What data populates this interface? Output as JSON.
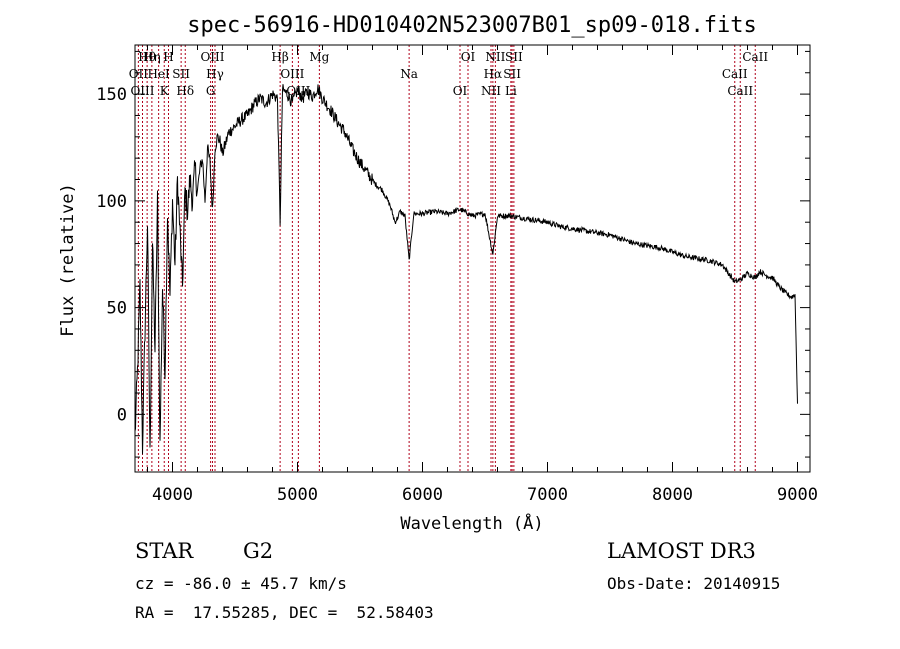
{
  "chart_data": {
    "type": "line",
    "title": "spec-56916-HD010402N523007B01_sp09-018.fits",
    "xlabel": "Wavelength (Å)",
    "ylabel": "Flux (relative)",
    "xlim": [
      3700,
      9100
    ],
    "ylim": [
      -27,
      173
    ],
    "x_ticks": [
      4000,
      5000,
      6000,
      7000,
      8000,
      9000
    ],
    "x_tick_labels": [
      "4000",
      "5000",
      "6000",
      "7000",
      "8000",
      "9000"
    ],
    "y_ticks": [
      0,
      50,
      100,
      150
    ],
    "y_tick_labels": [
      "0",
      "50",
      "100",
      "150"
    ],
    "grid": false,
    "series": [
      {
        "name": "flux",
        "color": "#000000",
        "x": [
          3700,
          3720,
          3740,
          3760,
          3780,
          3800,
          3820,
          3840,
          3860,
          3880,
          3900,
          3920,
          3940,
          3960,
          3980,
          4000,
          4020,
          4040,
          4060,
          4080,
          4100,
          4120,
          4140,
          4160,
          4180,
          4200,
          4220,
          4240,
          4260,
          4280,
          4300,
          4320,
          4340,
          4360,
          4380,
          4400,
          4450,
          4500,
          4550,
          4600,
          4650,
          4700,
          4750,
          4800,
          4840,
          4861,
          4880,
          4920,
          4960,
          5000,
          5040,
          5080,
          5120,
          5160,
          5200,
          5260,
          5320,
          5380,
          5440,
          5500,
          5560,
          5620,
          5680,
          5740,
          5780,
          5800,
          5820,
          5860,
          5893,
          5930,
          6000,
          6100,
          6200,
          6300,
          6400,
          6500,
          6563,
          6600,
          6700,
          6800,
          6900,
          7000,
          7100,
          7200,
          7300,
          7400,
          7500,
          7600,
          7700,
          7800,
          7900,
          8000,
          8100,
          8200,
          8300,
          8400,
          8498,
          8542,
          8600,
          8662,
          8700,
          8750,
          8800,
          8850,
          8900,
          8950,
          8980,
          9000
        ],
        "values": [
          -10,
          20,
          60,
          -15,
          40,
          90,
          -20,
          80,
          30,
          100,
          -15,
          60,
          20,
          95,
          55,
          100,
          70,
          110,
          85,
          60,
          105,
          95,
          110,
          100,
          115,
          105,
          115,
          120,
          100,
          125,
          118,
          95,
          125,
          130,
          128,
          122,
          132,
          135,
          138,
          140,
          145,
          148,
          146,
          150,
          148,
          90,
          152,
          150,
          146,
          152,
          148,
          151,
          149,
          153,
          148,
          143,
          137,
          132,
          124,
          118,
          113,
          108,
          105,
          98,
          90,
          92,
          95,
          93,
          72,
          94,
          94,
          95,
          94,
          96,
          93,
          94,
          75,
          93,
          93,
          92,
          91,
          90,
          88,
          87,
          86,
          85,
          84,
          82,
          80,
          79,
          78,
          76,
          74,
          73,
          72,
          70,
          62,
          63,
          66,
          64,
          67,
          65,
          64,
          60,
          57,
          55,
          56,
          5
        ]
      }
    ],
    "lines": [
      {
        "label": "Hθ",
        "x": 3797
      },
      {
        "label": "OII",
        "x": 3727
      },
      {
        "label": "OIII",
        "x": 3760
      },
      {
        "label": "Hη",
        "x": 3835
      },
      {
        "label": "HeI",
        "x": 3889
      },
      {
        "label": "K",
        "x": 3934
      },
      {
        "label": "H",
        "x": 3968
      },
      {
        "label": "SII",
        "x": 4069
      },
      {
        "label": "Hδ",
        "x": 4102
      },
      {
        "label": "OIII",
        "x": 4320
      },
      {
        "label": "Hγ",
        "x": 4340
      },
      {
        "label": "G",
        "x": 4305
      },
      {
        "label": "Hβ",
        "x": 4861
      },
      {
        "label": "OIII",
        "x": 4959
      },
      {
        "label": "OIII",
        "x": 5007
      },
      {
        "label": "Mg",
        "x": 5175
      },
      {
        "label": "Na",
        "x": 5893
      },
      {
        "label": "OI",
        "x": 6300
      },
      {
        "label": "OI",
        "x": 6364
      },
      {
        "label": "Hα",
        "x": 6563
      },
      {
        "label": "NII",
        "x": 6548
      },
      {
        "label": "NII",
        "x": 6583
      },
      {
        "label": "SII",
        "x": 6717
      },
      {
        "label": "Li",
        "x": 6707
      },
      {
        "label": "SII",
        "x": 6731
      },
      {
        "label": "CaII",
        "x": 8498
      },
      {
        "label": "CaII",
        "x": 8542
      },
      {
        "label": "CaII",
        "x": 8662
      }
    ]
  },
  "info": {
    "class_type": "STAR",
    "subclass": "G2",
    "survey": "LAMOST DR3",
    "cz": "cz = -86.0 ± 45.7 km/s",
    "obs_date": "Obs-Date: 20140915",
    "coords": "RA =  17.55285, DEC =  52.58403"
  }
}
